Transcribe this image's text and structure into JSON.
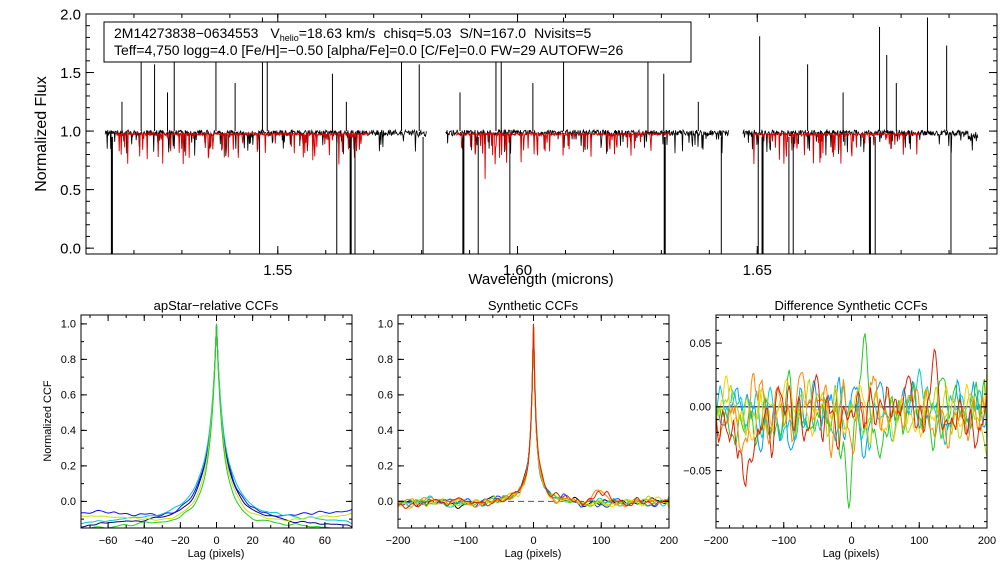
{
  "chart_data": [
    {
      "type": "line",
      "title": "",
      "xlabel": "Wavelength (microns)",
      "ylabel": "Normalized Flux",
      "xlim": [
        1.51,
        1.7
      ],
      "ylim": [
        -0.05,
        2.0
      ],
      "xticks": [
        1.55,
        1.6,
        1.65
      ],
      "xtick_labels": [
        "1.55",
        "1.60",
        "1.65"
      ],
      "yticks": [
        0.0,
        0.5,
        1.0,
        1.5,
        2.0
      ],
      "ytick_labels": [
        "0.0",
        "0.5",
        "1.0",
        "1.5",
        "2.0"
      ],
      "chips": [
        [
          1.514,
          1.581
        ],
        [
          1.585,
          1.644
        ],
        [
          1.647,
          1.696
        ]
      ],
      "annotation": {
        "star": "2M14273838−0634553",
        "v_prefix": "V",
        "v_sub": "helio",
        "v_rest": "=18.63 km/s",
        "chisq": "chisq=5.03",
        "sn": "S/N=167.0",
        "nvisits": "Nvisits=5",
        "line2": "Teff=4,750 logg=4.0 [Fe/H]=−0.50 [alpha/Fe]=0.0 [C/Fe]=0.0 FW=29 AUTOFW=26"
      },
      "series": [
        {
          "name": "Observed",
          "color": "#000000"
        },
        {
          "name": "Model",
          "color": "#dd0000"
        }
      ],
      "spikes_up": [
        1.5175,
        1.5215,
        1.5243,
        1.527,
        1.5284,
        1.5371,
        1.5411,
        1.5468,
        1.5478,
        1.5614,
        1.5643,
        1.5758,
        1.5795,
        1.588,
        1.5955,
        1.5966,
        1.6032,
        1.6096,
        1.6272,
        1.6305,
        1.6377,
        1.6505,
        1.6605,
        1.6679,
        1.6755,
        1.677,
        1.679,
        1.6855,
        1.6895
      ],
      "spikes_down": [
        1.5154,
        1.5462,
        1.5623,
        1.5652,
        1.5661,
        1.5803,
        1.5887,
        1.5918,
        1.5984,
        1.6307,
        1.6425,
        1.6502,
        1.6511,
        1.6566,
        1.6575,
        1.6735,
        1.6746,
        1.6904
      ]
    },
    {
      "type": "line",
      "title": "apStar−relative CCFs",
      "xlabel": "Lag (pixels)",
      "ylabel": "Normalized CCF",
      "xlim": [
        -75,
        75
      ],
      "ylim": [
        -0.15,
        1.05
      ],
      "xticks": [
        -60,
        -40,
        -20,
        0,
        20,
        40,
        60
      ],
      "xtick_labels": [
        "−60",
        "−40",
        "−20",
        "0",
        "20",
        "40",
        "60"
      ],
      "yticks": [
        0.0,
        0.2,
        0.4,
        0.6,
        0.8,
        1.0
      ],
      "ytick_labels": [
        "0.0",
        "0.2",
        "0.4",
        "0.6",
        "0.8",
        "1.0"
      ],
      "series": [
        {
          "name": "visit-1",
          "color": "#000080",
          "width": 8.0,
          "floor": -0.1
        },
        {
          "name": "visit-2",
          "color": "#1010ff",
          "width": 8.3,
          "floor": -0.09
        },
        {
          "name": "visit-3",
          "color": "#00c8c8",
          "width": 8.8,
          "floor": -0.08
        },
        {
          "name": "visit-4",
          "color": "#c8e400",
          "width": 7.2,
          "floor": -0.11
        },
        {
          "name": "visit-5",
          "color": "#22cc22",
          "width": 6.6,
          "floor": -0.12
        }
      ]
    },
    {
      "type": "line",
      "title": "Synthetic CCFs",
      "xlabel": "Lag (pixels)",
      "ylabel": "",
      "xlim": [
        -200,
        200
      ],
      "ylim": [
        -0.15,
        1.05
      ],
      "xticks": [
        -200,
        -100,
        0,
        100,
        200
      ],
      "xtick_labels": [
        "−200",
        "−100",
        "0",
        "100",
        "200"
      ],
      "yticks": [
        0.0,
        0.2,
        0.4,
        0.6,
        0.8,
        1.0
      ],
      "ytick_labels": [
        "0.0",
        "0.2",
        "0.4",
        "0.6",
        "0.8",
        "1.0"
      ],
      "reference_line": 0.0,
      "series": [
        {
          "name": "visit-1",
          "color": "#000000"
        },
        {
          "name": "visit-2",
          "color": "#0044ff"
        },
        {
          "name": "visit-3",
          "color": "#00c8c8"
        },
        {
          "name": "visit-4",
          "color": "#22cc22"
        },
        {
          "name": "visit-5",
          "color": "#aadd00"
        },
        {
          "name": "visit-6",
          "color": "#ffcc00"
        },
        {
          "name": "visit-7",
          "color": "#ff8800"
        },
        {
          "name": "visit-8",
          "color": "#dd2200"
        }
      ]
    },
    {
      "type": "line",
      "title": "Difference Synthetic CCFs",
      "xlabel": "Lag (pixels)",
      "ylabel": "",
      "xlim": [
        -200,
        200
      ],
      "ylim": [
        -0.095,
        0.072
      ],
      "xticks": [
        -200,
        -100,
        0,
        100,
        200
      ],
      "xtick_labels": [
        "−200",
        "−100",
        "0",
        "100",
        "200"
      ],
      "yticks": [
        -0.05,
        0.0,
        0.05
      ],
      "ytick_labels": [
        "−0.05",
        "0.00",
        "0.05"
      ],
      "reference_line": 0.0,
      "series": [
        {
          "name": "visit-1",
          "color": "#000080"
        },
        {
          "name": "visit-2",
          "color": "#00a0ff"
        },
        {
          "name": "visit-3",
          "color": "#00d0c0"
        },
        {
          "name": "visit-4",
          "color": "#22cc22"
        },
        {
          "name": "visit-5",
          "color": "#aadd00"
        },
        {
          "name": "visit-6",
          "color": "#ffcc00"
        },
        {
          "name": "visit-7",
          "color": "#ff8800"
        },
        {
          "name": "visit-8",
          "color": "#dd2200"
        }
      ]
    }
  ]
}
